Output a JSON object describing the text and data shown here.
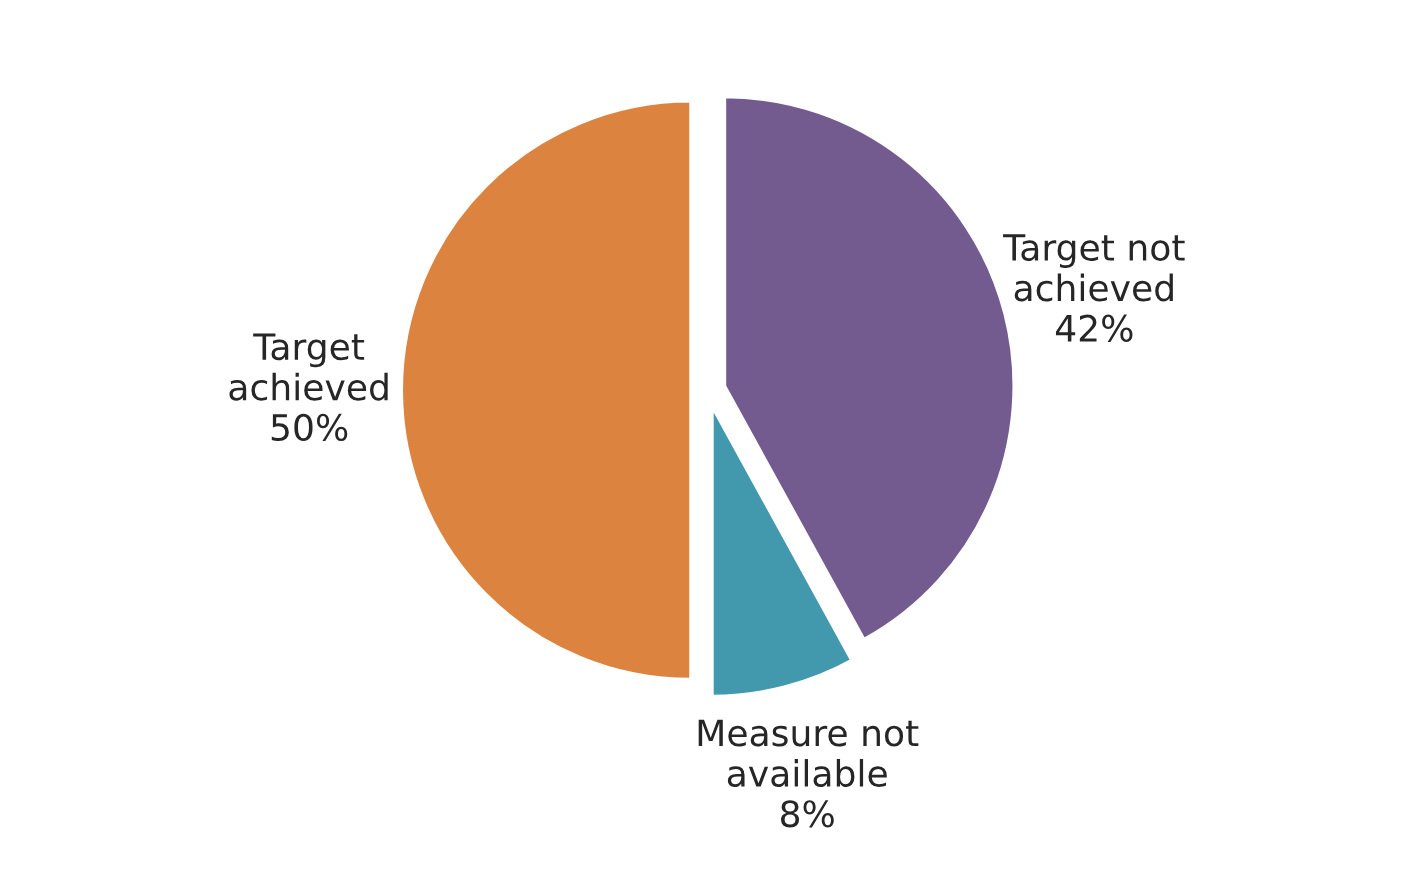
{
  "chart_data": {
    "type": "pie",
    "categories": [
      "Target not\nachieved",
      "Measure not\navailable",
      "Target\nachieved"
    ],
    "values": [
      42,
      8,
      50
    ],
    "value_labels": [
      "42%",
      "8%",
      "50%"
    ],
    "colors": [
      "#735a8f",
      "#4299ad",
      "#dc843f"
    ]
  }
}
